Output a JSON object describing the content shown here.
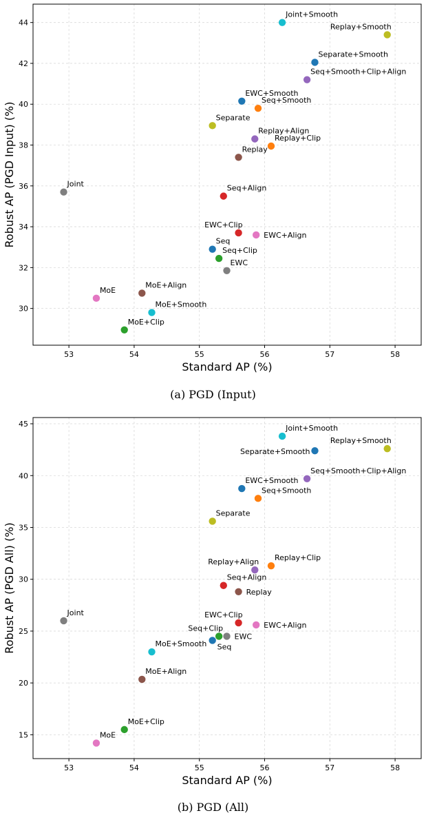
{
  "chart_data": [
    {
      "type": "scatter",
      "caption": "(a) PGD (Input)",
      "xlabel": "Standard AP (%)",
      "ylabel": "Robust AP (PGD Input) (%)",
      "xlim": [
        52.45,
        58.4
      ],
      "ylim": [
        28.2,
        44.9
      ],
      "xticks": [
        53,
        54,
        55,
        56,
        57,
        58
      ],
      "yticks": [
        30,
        32,
        34,
        36,
        38,
        40,
        42,
        44
      ],
      "grid": true,
      "points": [
        {
          "name": "Joint+Smooth",
          "x": 56.27,
          "y": 44.0,
          "color": "#17becf",
          "label_pos": "ur"
        },
        {
          "name": "Replay+Smooth",
          "x": 57.88,
          "y": 43.4,
          "color": "#bcbd22",
          "label_pos": "ul"
        },
        {
          "name": "Separate+Smooth",
          "x": 56.77,
          "y": 42.05,
          "color": "#1f77b4",
          "label_pos": "ur"
        },
        {
          "name": "Seq+Smooth+Clip+Align",
          "x": 56.65,
          "y": 41.2,
          "color": "#9467bd",
          "label_pos": "ur"
        },
        {
          "name": "EWC+Smooth",
          "x": 55.65,
          "y": 40.15,
          "color": "#1f77b4",
          "label_pos": "ur"
        },
        {
          "name": "Seq+Smooth",
          "x": 55.9,
          "y": 39.8,
          "color": "#ff7f0e",
          "label_pos": "ur"
        },
        {
          "name": "Separate",
          "x": 55.2,
          "y": 38.95,
          "color": "#bcbd22",
          "label_pos": "ur"
        },
        {
          "name": "Replay+Align",
          "x": 55.85,
          "y": 38.3,
          "color": "#9467bd",
          "label_pos": "ur"
        },
        {
          "name": "Replay+Clip",
          "x": 56.1,
          "y": 37.95,
          "color": "#ff7f0e",
          "label_pos": "ur"
        },
        {
          "name": "Replay",
          "x": 55.6,
          "y": 37.4,
          "color": "#8c564b",
          "label_pos": "ur"
        },
        {
          "name": "Joint",
          "x": 52.92,
          "y": 35.7,
          "color": "#7f7f7f",
          "label_pos": "ur"
        },
        {
          "name": "Seq+Align",
          "x": 55.37,
          "y": 35.5,
          "color": "#d62728",
          "label_pos": "ur"
        },
        {
          "name": "EWC+Clip",
          "x": 55.6,
          "y": 33.7,
          "color": "#d62728",
          "label_pos": "ul"
        },
        {
          "name": "EWC+Align",
          "x": 55.87,
          "y": 33.6,
          "color": "#e377c2",
          "label_pos": "r"
        },
        {
          "name": "Seq",
          "x": 55.2,
          "y": 32.9,
          "color": "#1f77b4",
          "label_pos": "ur"
        },
        {
          "name": "Seq+Clip",
          "x": 55.3,
          "y": 32.45,
          "color": "#2ca02c",
          "label_pos": "ur"
        },
        {
          "name": "EWC",
          "x": 55.42,
          "y": 31.85,
          "color": "#7f7f7f",
          "label_pos": "ur"
        },
        {
          "name": "MoE+Align",
          "x": 54.12,
          "y": 30.75,
          "color": "#8c564b",
          "label_pos": "ur"
        },
        {
          "name": "MoE",
          "x": 53.42,
          "y": 30.5,
          "color": "#e377c2",
          "label_pos": "ur"
        },
        {
          "name": "MoE+Smooth",
          "x": 54.27,
          "y": 29.8,
          "color": "#17becf",
          "label_pos": "ur"
        },
        {
          "name": "MoE+Clip",
          "x": 53.85,
          "y": 28.95,
          "color": "#2ca02c",
          "label_pos": "ur"
        }
      ]
    },
    {
      "type": "scatter",
      "caption": "(b) PGD (All)",
      "xlabel": "Standard AP (%)",
      "ylabel": "Robust AP (PGD All) (%)",
      "xlim": [
        52.45,
        58.4
      ],
      "ylim": [
        12.7,
        45.6
      ],
      "xticks": [
        53,
        54,
        55,
        56,
        57,
        58
      ],
      "yticks": [
        15,
        20,
        25,
        30,
        35,
        40,
        45
      ],
      "grid": true,
      "points": [
        {
          "name": "Joint+Smooth",
          "x": 56.27,
          "y": 43.8,
          "color": "#17becf",
          "label_pos": "ur"
        },
        {
          "name": "Replay+Smooth",
          "x": 57.88,
          "y": 42.6,
          "color": "#bcbd22",
          "label_pos": "ul"
        },
        {
          "name": "Separate+Smooth",
          "x": 56.77,
          "y": 42.4,
          "color": "#1f77b4",
          "label_pos": "l"
        },
        {
          "name": "Seq+Smooth+Clip+Align",
          "x": 56.65,
          "y": 39.7,
          "color": "#9467bd",
          "label_pos": "ur"
        },
        {
          "name": "EWC+Smooth",
          "x": 55.65,
          "y": 38.75,
          "color": "#1f77b4",
          "label_pos": "ur"
        },
        {
          "name": "Seq+Smooth",
          "x": 55.9,
          "y": 37.8,
          "color": "#ff7f0e",
          "label_pos": "ur"
        },
        {
          "name": "Separate",
          "x": 55.2,
          "y": 35.6,
          "color": "#bcbd22",
          "label_pos": "ur"
        },
        {
          "name": "Replay+Clip",
          "x": 56.1,
          "y": 31.3,
          "color": "#ff7f0e",
          "label_pos": "ur"
        },
        {
          "name": "Replay+Align",
          "x": 55.85,
          "y": 30.9,
          "color": "#9467bd",
          "label_pos": "ul"
        },
        {
          "name": "Seq+Align",
          "x": 55.37,
          "y": 29.4,
          "color": "#d62728",
          "label_pos": "ur"
        },
        {
          "name": "Replay",
          "x": 55.6,
          "y": 28.8,
          "color": "#8c564b",
          "label_pos": "r"
        },
        {
          "name": "Joint",
          "x": 52.92,
          "y": 26.0,
          "color": "#7f7f7f",
          "label_pos": "ur"
        },
        {
          "name": "EWC+Clip",
          "x": 55.6,
          "y": 25.8,
          "color": "#d62728",
          "label_pos": "ul"
        },
        {
          "name": "EWC+Align",
          "x": 55.87,
          "y": 25.6,
          "color": "#e377c2",
          "label_pos": "r"
        },
        {
          "name": "Seq+Clip",
          "x": 55.3,
          "y": 24.5,
          "color": "#2ca02c",
          "label_pos": "ul"
        },
        {
          "name": "EWC",
          "x": 55.42,
          "y": 24.5,
          "color": "#7f7f7f",
          "label_pos": "r"
        },
        {
          "name": "Seq",
          "x": 55.2,
          "y": 24.1,
          "color": "#1f77b4",
          "label_pos": "br"
        },
        {
          "name": "MoE+Smooth",
          "x": 54.27,
          "y": 23.0,
          "color": "#17becf",
          "label_pos": "ur"
        },
        {
          "name": "MoE+Align",
          "x": 54.12,
          "y": 20.35,
          "color": "#8c564b",
          "label_pos": "ur"
        },
        {
          "name": "MoE+Clip",
          "x": 53.85,
          "y": 15.5,
          "color": "#2ca02c",
          "label_pos": "ur"
        },
        {
          "name": "MoE",
          "x": 53.42,
          "y": 14.2,
          "color": "#e377c2",
          "label_pos": "ur"
        }
      ]
    }
  ]
}
